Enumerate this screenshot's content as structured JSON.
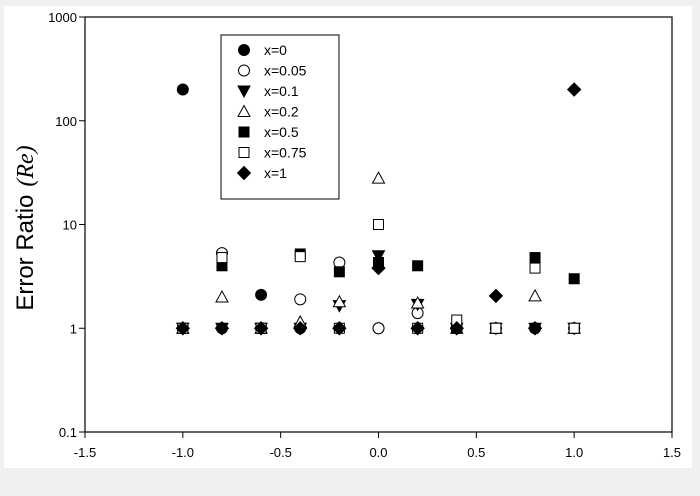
{
  "chart_data": {
    "type": "scatter",
    "title": "",
    "xlabel": "",
    "ylabel": "Error Ratio",
    "ylabel_symbol": "(Re)",
    "xscale": "linear",
    "yscale": "log",
    "xlim": [
      -1.5,
      1.5
    ],
    "ylim": [
      0.1,
      1000
    ],
    "xticks": [
      "-1.5",
      "-1.0",
      "-0.5",
      "0.0",
      "0.5",
      "1.0",
      "1.5"
    ],
    "xtick_values": [
      -1.5,
      -1.0,
      -0.5,
      0.0,
      0.5,
      1.0,
      1.5
    ],
    "yticks": [
      "0.1",
      "1",
      "10",
      "100",
      "1000"
    ],
    "ytick_values": [
      0.1,
      1,
      10,
      100,
      1000
    ],
    "grid": false,
    "legend_position": "top-left",
    "series": [
      {
        "name": "x=0",
        "marker": "filled-circle",
        "x": [
          -1.0,
          -0.8,
          -0.6,
          -0.4,
          -0.2,
          0.0,
          0.2,
          0.4,
          0.6,
          0.8,
          1.0
        ],
        "y": [
          200,
          1,
          2.1,
          1,
          1,
          1,
          1,
          1,
          1,
          1,
          1
        ]
      },
      {
        "name": "x=0.05",
        "marker": "open-circle",
        "x": [
          -1.0,
          -0.8,
          -0.6,
          -0.4,
          -0.2,
          0.0,
          0.2,
          0.4,
          0.6,
          0.8,
          1.0
        ],
        "y": [
          1,
          5.3,
          1,
          1.9,
          4.3,
          1,
          1.4,
          1,
          1,
          1,
          1
        ]
      },
      {
        "name": "x=0.1",
        "marker": "filled-triangle-down",
        "x": [
          -1.0,
          -0.8,
          -0.6,
          -0.4,
          -0.2,
          0.0,
          0.2,
          0.4,
          0.6,
          0.8,
          1.0
        ],
        "y": [
          1,
          1,
          1,
          1,
          1.65,
          5,
          1.7,
          1,
          1,
          1,
          1
        ]
      },
      {
        "name": "x=0.2",
        "marker": "open-triangle-up",
        "x": [
          -1.0,
          -0.8,
          -0.6,
          -0.4,
          -0.2,
          0.0,
          0.2,
          0.4,
          0.6,
          0.8,
          1.0
        ],
        "y": [
          1,
          2,
          1,
          1.15,
          1.8,
          28,
          1.75,
          1,
          1,
          2.05,
          1
        ]
      },
      {
        "name": "x=0.5",
        "marker": "filled-square",
        "x": [
          -1.0,
          -0.8,
          -0.6,
          -0.4,
          -0.2,
          0.0,
          0.2,
          0.4,
          0.6,
          0.8,
          1.0
        ],
        "y": [
          1,
          4,
          1,
          5.2,
          3.5,
          4.3,
          4,
          1,
          1,
          4.8,
          3
        ]
      },
      {
        "name": "x=0.75",
        "marker": "open-square",
        "x": [
          -1.0,
          -0.8,
          -0.6,
          -0.4,
          -0.2,
          0.0,
          0.2,
          0.4,
          0.6,
          0.8,
          1.0
        ],
        "y": [
          1,
          4.8,
          1,
          4.9,
          1,
          10,
          1,
          1.2,
          1,
          3.8,
          1
        ]
      },
      {
        "name": "x=1",
        "marker": "filled-diamond",
        "x": [
          -1.0,
          -0.8,
          -0.6,
          -0.4,
          -0.2,
          0.0,
          0.2,
          0.4,
          0.6,
          0.8,
          1.0
        ],
        "y": [
          1,
          1,
          1,
          1,
          1,
          3.8,
          1,
          1,
          2.05,
          1,
          200
        ]
      }
    ]
  }
}
